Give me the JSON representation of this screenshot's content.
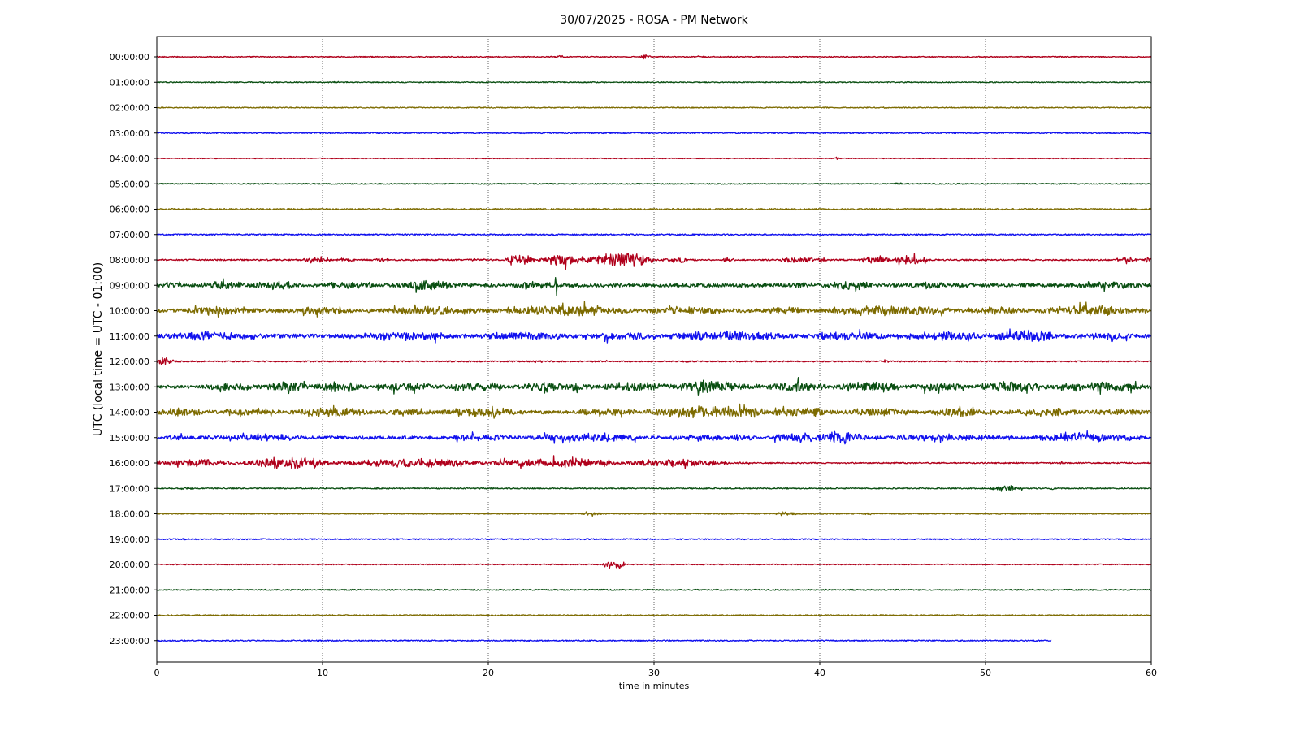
{
  "chart_data": {
    "type": "line",
    "title": "30/07/2025 - ROSA - PM Network",
    "xlabel": "time in minutes",
    "ylabel": "UTC (local time = UTC - 01:00)",
    "xlim": [
      0,
      60
    ],
    "x_ticks": [
      0,
      10,
      20,
      30,
      40,
      50,
      60
    ],
    "x_tick_labels": [
      "0",
      "10",
      "20",
      "30",
      "40",
      "50",
      "60"
    ],
    "grid": "vertical dotted lines at each x tick",
    "legend": "none",
    "color_cycle": [
      "#b0001b",
      "#0a4f12",
      "#7d6b00",
      "#1010ee"
    ],
    "series": [
      {
        "label": "00:00:00",
        "color": "#b0001b",
        "end_minute": 60,
        "base_amp": 0.6,
        "bursts": [
          {
            "t": 23.5,
            "dur": 1.5,
            "amp": 1.6
          },
          {
            "t": 29.2,
            "dur": 0.6,
            "amp": 3.5
          },
          {
            "t": 32.5,
            "dur": 1.0,
            "amp": 1.2
          }
        ]
      },
      {
        "label": "01:00:00",
        "color": "#0a4f12",
        "end_minute": 60,
        "base_amp": 0.6,
        "bursts": [
          {
            "t": 6.2,
            "dur": 0.5,
            "amp": 1.2
          },
          {
            "t": 10.5,
            "dur": 0.5,
            "amp": 1.0
          }
        ]
      },
      {
        "label": "02:00:00",
        "color": "#7d6b00",
        "end_minute": 60,
        "base_amp": 0.6,
        "bursts": [
          {
            "t": 19.0,
            "dur": 1.0,
            "amp": 1.2
          },
          {
            "t": 43.5,
            "dur": 0.8,
            "amp": 1.2
          }
        ]
      },
      {
        "label": "03:00:00",
        "color": "#1010ee",
        "end_minute": 60,
        "base_amp": 0.7,
        "bursts": [
          {
            "t": 27.0,
            "dur": 0.8,
            "amp": 1.2
          }
        ]
      },
      {
        "label": "04:00:00",
        "color": "#b0001b",
        "end_minute": 60,
        "base_amp": 0.5,
        "bursts": [
          {
            "t": 40.8,
            "dur": 0.4,
            "amp": 2.0
          }
        ]
      },
      {
        "label": "05:00:00",
        "color": "#0a4f12",
        "end_minute": 60,
        "base_amp": 0.6,
        "bursts": [
          {
            "t": 44.4,
            "dur": 0.6,
            "amp": 2.0
          },
          {
            "t": 48.0,
            "dur": 1.0,
            "amp": 1.2
          }
        ]
      },
      {
        "label": "06:00:00",
        "color": "#7d6b00",
        "end_minute": 60,
        "base_amp": 0.9,
        "bursts": []
      },
      {
        "label": "07:00:00",
        "color": "#1010ee",
        "end_minute": 60,
        "base_amp": 0.8,
        "bursts": [
          {
            "t": 23.6,
            "dur": 0.6,
            "amp": 2.0
          },
          {
            "t": 15.6,
            "dur": 0.4,
            "amp": 1.5
          }
        ]
      },
      {
        "label": "08:00:00",
        "color": "#b0001b",
        "end_minute": 60,
        "base_amp": 0.9,
        "bursts": [
          {
            "t": 8.8,
            "dur": 1.8,
            "amp": 5.5
          },
          {
            "t": 10.8,
            "dur": 1.2,
            "amp": 3.0
          },
          {
            "t": 13.2,
            "dur": 0.8,
            "amp": 4.0
          },
          {
            "t": 18.5,
            "dur": 1.5,
            "amp": 2.0
          },
          {
            "t": 21.0,
            "dur": 1.8,
            "amp": 8.0
          },
          {
            "t": 23.0,
            "dur": 3.0,
            "amp": 7.0
          },
          {
            "t": 26.0,
            "dur": 4.0,
            "amp": 10.0
          },
          {
            "t": 30.5,
            "dur": 1.5,
            "amp": 5.0
          },
          {
            "t": 34.0,
            "dur": 1.0,
            "amp": 3.0
          },
          {
            "t": 37.5,
            "dur": 3.0,
            "amp": 4.5
          },
          {
            "t": 42.5,
            "dur": 1.8,
            "amp": 5.0
          },
          {
            "t": 44.5,
            "dur": 2.0,
            "amp": 7.0
          },
          {
            "t": 57.5,
            "dur": 1.8,
            "amp": 3.0
          },
          {
            "t": 59.6,
            "dur": 0.4,
            "amp": 7.0
          }
        ]
      },
      {
        "label": "09:00:00",
        "color": "#0a4f12",
        "end_minute": 60,
        "base_amp": 2.2,
        "bursts": [
          {
            "t": 0.2,
            "dur": 1.5,
            "amp": 5.0
          },
          {
            "t": 2.5,
            "dur": 3.0,
            "amp": 6.0
          },
          {
            "t": 5.5,
            "dur": 3.5,
            "amp": 6.0
          },
          {
            "t": 9.5,
            "dur": 4.0,
            "amp": 5.0
          },
          {
            "t": 14.5,
            "dur": 4.0,
            "amp": 7.0
          },
          {
            "t": 21.0,
            "dur": 3.5,
            "amp": 5.0
          },
          {
            "t": 24.0,
            "dur": 0.2,
            "amp": 15.0
          },
          {
            "t": 37.5,
            "dur": 3.0,
            "amp": 4.0
          },
          {
            "t": 40.3,
            "dur": 3.0,
            "amp": 6.0
          },
          {
            "t": 45.0,
            "dur": 4.0,
            "amp": 4.0
          },
          {
            "t": 55.0,
            "dur": 5.0,
            "amp": 4.5
          }
        ]
      },
      {
        "label": "10:00:00",
        "color": "#7d6b00",
        "end_minute": 60,
        "base_amp": 2.4,
        "bursts": [
          {
            "t": 1.0,
            "dur": 5.0,
            "amp": 6.0
          },
          {
            "t": 8.0,
            "dur": 4.0,
            "amp": 5.5
          },
          {
            "t": 13.5,
            "dur": 6.0,
            "amp": 6.0
          },
          {
            "t": 20.5,
            "dur": 9.0,
            "amp": 7.0
          },
          {
            "t": 29.5,
            "dur": 5.0,
            "amp": 6.0
          },
          {
            "t": 36.5,
            "dur": 3.0,
            "amp": 5.0
          },
          {
            "t": 40.5,
            "dur": 8.0,
            "amp": 7.0
          },
          {
            "t": 48.5,
            "dur": 4.5,
            "amp": 6.0
          },
          {
            "t": 53.0,
            "dur": 7.0,
            "amp": 7.0
          }
        ]
      },
      {
        "label": "11:00:00",
        "color": "#1010ee",
        "end_minute": 60,
        "base_amp": 2.4,
        "bursts": [
          {
            "t": 0.0,
            "dur": 7.0,
            "amp": 6.0
          },
          {
            "t": 11.0,
            "dur": 8.0,
            "amp": 6.0
          },
          {
            "t": 19.0,
            "dur": 6.0,
            "amp": 6.0
          },
          {
            "t": 25.0,
            "dur": 6.0,
            "amp": 5.0
          },
          {
            "t": 30.5,
            "dur": 8.0,
            "amp": 7.0
          },
          {
            "t": 38.5,
            "dur": 6.0,
            "amp": 6.0
          },
          {
            "t": 44.5,
            "dur": 6.0,
            "amp": 6.0
          },
          {
            "t": 50.0,
            "dur": 5.0,
            "amp": 8.0
          },
          {
            "t": 55.0,
            "dur": 5.0,
            "amp": 5.0
          }
        ]
      },
      {
        "label": "12:00:00",
        "color": "#b0001b",
        "end_minute": 60,
        "base_amp": 0.8,
        "bursts": [
          {
            "t": 0.0,
            "dur": 1.0,
            "amp": 6.0
          },
          {
            "t": 22.0,
            "dur": 2.0,
            "amp": 1.5
          },
          {
            "t": 26.0,
            "dur": 1.5,
            "amp": 1.2
          },
          {
            "t": 31.0,
            "dur": 2.0,
            "amp": 1.5
          },
          {
            "t": 43.5,
            "dur": 1.0,
            "amp": 1.5
          },
          {
            "t": 53.0,
            "dur": 1.0,
            "amp": 1.2
          }
        ]
      },
      {
        "label": "13:00:00",
        "color": "#0a4f12",
        "end_minute": 60,
        "base_amp": 2.0,
        "bursts": [
          {
            "t": 2.5,
            "dur": 4.0,
            "amp": 5.0
          },
          {
            "t": 6.5,
            "dur": 3.0,
            "amp": 8.0
          },
          {
            "t": 9.5,
            "dur": 3.0,
            "amp": 8.0
          },
          {
            "t": 12.5,
            "dur": 5.0,
            "amp": 6.0
          },
          {
            "t": 17.5,
            "dur": 4.0,
            "amp": 6.0
          },
          {
            "t": 21.5,
            "dur": 5.0,
            "amp": 7.0
          },
          {
            "t": 26.5,
            "dur": 5.0,
            "amp": 6.0
          },
          {
            "t": 31.0,
            "dur": 5.0,
            "amp": 8.0
          },
          {
            "t": 36.0,
            "dur": 5.0,
            "amp": 7.0
          },
          {
            "t": 41.0,
            "dur": 4.0,
            "amp": 8.0
          },
          {
            "t": 45.0,
            "dur": 4.0,
            "amp": 6.0
          },
          {
            "t": 49.0,
            "dur": 5.0,
            "amp": 7.0
          },
          {
            "t": 54.0,
            "dur": 6.0,
            "amp": 7.0
          }
        ]
      },
      {
        "label": "14:00:00",
        "color": "#7d6b00",
        "end_minute": 60,
        "base_amp": 2.2,
        "bursts": [
          {
            "t": 0.0,
            "dur": 3.0,
            "amp": 5.5
          },
          {
            "t": 3.0,
            "dur": 5.0,
            "amp": 4.5
          },
          {
            "t": 8.0,
            "dur": 5.0,
            "amp": 7.0
          },
          {
            "t": 13.0,
            "dur": 4.0,
            "amp": 5.0
          },
          {
            "t": 17.0,
            "dur": 5.0,
            "amp": 7.0
          },
          {
            "t": 25.0,
            "dur": 4.5,
            "amp": 5.0
          },
          {
            "t": 29.5,
            "dur": 7.5,
            "amp": 9.0
          },
          {
            "t": 37.0,
            "dur": 4.0,
            "amp": 7.0
          },
          {
            "t": 41.0,
            "dur": 5.0,
            "amp": 6.0
          },
          {
            "t": 46.0,
            "dur": 5.0,
            "amp": 6.0
          },
          {
            "t": 51.0,
            "dur": 5.0,
            "amp": 6.0
          },
          {
            "t": 56.0,
            "dur": 4.0,
            "amp": 5.0
          }
        ]
      },
      {
        "label": "15:00:00",
        "color": "#1010ee",
        "end_minute": 60,
        "base_amp": 2.0,
        "bursts": [
          {
            "t": 0.0,
            "dur": 2.0,
            "amp": 4.0
          },
          {
            "t": 2.0,
            "dur": 8.0,
            "amp": 4.0
          },
          {
            "t": 17.0,
            "dur": 5.0,
            "amp": 5.0
          },
          {
            "t": 22.0,
            "dur": 8.0,
            "amp": 6.0
          },
          {
            "t": 30.0,
            "dur": 7.0,
            "amp": 5.0
          },
          {
            "t": 37.0,
            "dur": 3.0,
            "amp": 7.0
          },
          {
            "t": 39.8,
            "dur": 3.0,
            "amp": 10.0
          },
          {
            "t": 43.0,
            "dur": 9.0,
            "amp": 5.0
          },
          {
            "t": 52.0,
            "dur": 8.0,
            "amp": 6.0
          }
        ]
      },
      {
        "label": "16:00:00",
        "color": "#b0001b",
        "end_minute": 60,
        "base_amp": 0.8,
        "bursts": [
          {
            "t": 0.0,
            "dur": 5.0,
            "amp": 5.0
          },
          {
            "t": 5.0,
            "dur": 6.0,
            "amp": 7.5
          },
          {
            "t": 11.0,
            "dur": 9.0,
            "amp": 6.0
          },
          {
            "t": 20.0,
            "dur": 8.0,
            "amp": 6.5
          },
          {
            "t": 28.0,
            "dur": 6.5,
            "amp": 5.5
          },
          {
            "t": 34.5,
            "dur": 2.0,
            "amp": 1.5
          },
          {
            "t": 54.5,
            "dur": 0.3,
            "amp": 2.5
          }
        ]
      },
      {
        "label": "17:00:00",
        "color": "#0a4f12",
        "end_minute": 60,
        "base_amp": 0.7,
        "bursts": [
          {
            "t": 1.0,
            "dur": 1.5,
            "amp": 1.5
          },
          {
            "t": 13.2,
            "dur": 0.3,
            "amp": 1.2
          },
          {
            "t": 50.2,
            "dur": 2.0,
            "amp": 4.5
          },
          {
            "t": 53.8,
            "dur": 0.5,
            "amp": 2.5
          }
        ]
      },
      {
        "label": "18:00:00",
        "color": "#7d6b00",
        "end_minute": 60,
        "base_amp": 0.6,
        "bursts": [
          {
            "t": 25.5,
            "dur": 1.5,
            "amp": 2.0
          },
          {
            "t": 37.0,
            "dur": 1.8,
            "amp": 2.5
          },
          {
            "t": 42.5,
            "dur": 1.0,
            "amp": 1.5
          }
        ]
      },
      {
        "label": "19:00:00",
        "color": "#1010ee",
        "end_minute": 60,
        "base_amp": 0.7,
        "bursts": [
          {
            "t": 1.5,
            "dur": 0.4,
            "amp": 1.5
          },
          {
            "t": 15.0,
            "dur": 0.4,
            "amp": 1.2
          }
        ]
      },
      {
        "label": "20:00:00",
        "color": "#b0001b",
        "end_minute": 60,
        "base_amp": 0.6,
        "bursts": [
          {
            "t": 26.9,
            "dur": 1.4,
            "amp": 6.5
          }
        ]
      },
      {
        "label": "21:00:00",
        "color": "#0a4f12",
        "end_minute": 60,
        "base_amp": 0.7,
        "bursts": []
      },
      {
        "label": "22:00:00",
        "color": "#7d6b00",
        "end_minute": 60,
        "base_amp": 0.7,
        "bursts": []
      },
      {
        "label": "23:00:00",
        "color": "#1010ee",
        "end_minute": 54,
        "base_amp": 0.7,
        "bursts": []
      }
    ]
  }
}
